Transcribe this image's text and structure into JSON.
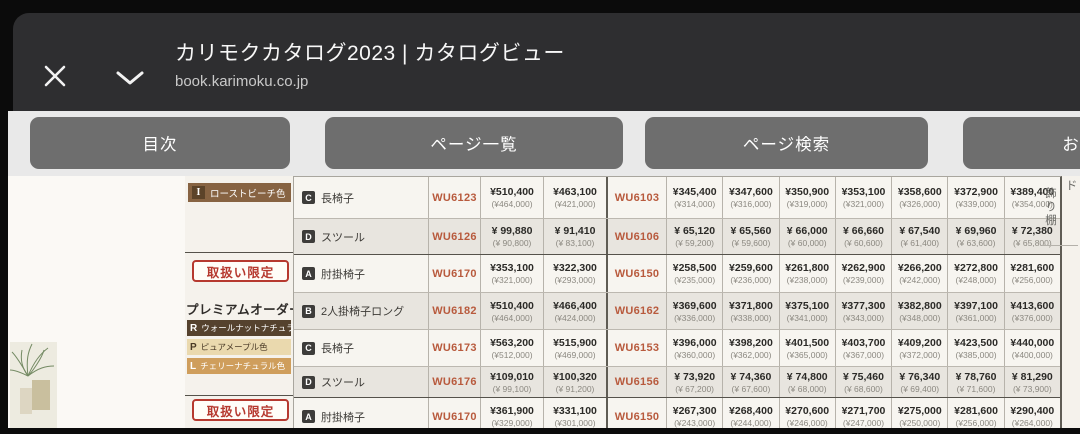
{
  "header": {
    "title": "カリモクカタログ2023 | カタログビュー",
    "url": "book.karimoku.co.jp"
  },
  "tabs": [
    {
      "label": "目次"
    },
    {
      "label": "ページ一覧"
    },
    {
      "label": "ページ検索"
    },
    {
      "label": "お"
    }
  ],
  "catalog": {
    "side_fragment": {
      "text_1": "ド",
      "text_2": "飾り棚"
    },
    "left_labels": {
      "color_badge_top": {
        "letter": "I",
        "label": "ローストビーチ色"
      },
      "limited_badge": "取扱い限定",
      "premium_title": "プレミアムオーダー",
      "premium_colors": [
        {
          "letter": "R",
          "label": "ウォールナットナチュラル色"
        },
        {
          "letter": "P",
          "label": "ピュアメープル色"
        },
        {
          "letter": "L",
          "label": "チェリーナチュラル色"
        }
      ],
      "limited_badge_2": "取扱い限定"
    },
    "rows": [
      {
        "icon": "C",
        "name": "長椅子",
        "code1": "WU6123",
        "group_start": false,
        "prices1": [
          [
            "¥510,400",
            "(¥464,000)"
          ],
          [
            "¥463,100",
            "(¥421,000)"
          ]
        ],
        "code2": "WU6103",
        "prices2": [
          [
            "¥345,400",
            "(¥314,000)"
          ],
          [
            "¥347,600",
            "(¥316,000)"
          ],
          [
            "¥350,900",
            "(¥319,000)"
          ],
          [
            "¥353,100",
            "(¥321,000)"
          ],
          [
            "¥358,600",
            "(¥326,000)"
          ],
          [
            "¥372,900",
            "(¥339,000)"
          ],
          [
            "¥389,400",
            "(¥354,000)"
          ]
        ]
      },
      {
        "icon": "D",
        "name": "スツール",
        "code1": "WU6126",
        "group_start": false,
        "prices1": [
          [
            "¥ 99,880",
            "(¥ 90,800)"
          ],
          [
            "¥ 91,410",
            "(¥ 83,100)"
          ]
        ],
        "code2": "WU6106",
        "prices2": [
          [
            "¥ 65,120",
            "(¥ 59,200)"
          ],
          [
            "¥ 65,560",
            "(¥ 59,600)"
          ],
          [
            "¥ 66,000",
            "(¥ 60,000)"
          ],
          [
            "¥ 66,660",
            "(¥ 60,600)"
          ],
          [
            "¥ 67,540",
            "(¥ 61,400)"
          ],
          [
            "¥ 69,960",
            "(¥ 63,600)"
          ],
          [
            "¥ 72,380",
            "(¥ 65,800)"
          ]
        ]
      },
      {
        "icon": "A",
        "name": "肘掛椅子",
        "code1": "WU6170",
        "group_start": true,
        "prices1": [
          [
            "¥353,100",
            "(¥321,000)"
          ],
          [
            "¥322,300",
            "(¥293,000)"
          ]
        ],
        "code2": "WU6150",
        "prices2": [
          [
            "¥258,500",
            "(¥235,000)"
          ],
          [
            "¥259,600",
            "(¥236,000)"
          ],
          [
            "¥261,800",
            "(¥238,000)"
          ],
          [
            "¥262,900",
            "(¥239,000)"
          ],
          [
            "¥266,200",
            "(¥242,000)"
          ],
          [
            "¥272,800",
            "(¥248,000)"
          ],
          [
            "¥281,600",
            "(¥256,000)"
          ]
        ]
      },
      {
        "icon": "B",
        "name": "2人掛椅子ロング",
        "code1": "WU6182",
        "group_start": false,
        "prices1": [
          [
            "¥510,400",
            "(¥464,000)"
          ],
          [
            "¥466,400",
            "(¥424,000)"
          ]
        ],
        "code2": "WU6162",
        "prices2": [
          [
            "¥369,600",
            "(¥336,000)"
          ],
          [
            "¥371,800",
            "(¥338,000)"
          ],
          [
            "¥375,100",
            "(¥341,000)"
          ],
          [
            "¥377,300",
            "(¥343,000)"
          ],
          [
            "¥382,800",
            "(¥348,000)"
          ],
          [
            "¥397,100",
            "(¥361,000)"
          ],
          [
            "¥413,600",
            "(¥376,000)"
          ]
        ]
      },
      {
        "icon": "C",
        "name": "長椅子",
        "code1": "WU6173",
        "group_start": false,
        "prices1": [
          [
            "¥563,200",
            "(¥512,000)"
          ],
          [
            "¥515,900",
            "(¥469,000)"
          ]
        ],
        "code2": "WU6153",
        "prices2": [
          [
            "¥396,000",
            "(¥360,000)"
          ],
          [
            "¥398,200",
            "(¥362,000)"
          ],
          [
            "¥401,500",
            "(¥365,000)"
          ],
          [
            "¥403,700",
            "(¥367,000)"
          ],
          [
            "¥409,200",
            "(¥372,000)"
          ],
          [
            "¥423,500",
            "(¥385,000)"
          ],
          [
            "¥440,000",
            "(¥400,000)"
          ]
        ]
      },
      {
        "icon": "D",
        "name": "スツール",
        "code1": "WU6176",
        "group_start": false,
        "prices1": [
          [
            "¥109,010",
            "(¥ 99,100)"
          ],
          [
            "¥100,320",
            "(¥ 91,200)"
          ]
        ],
        "code2": "WU6156",
        "prices2": [
          [
            "¥ 73,920",
            "(¥ 67,200)"
          ],
          [
            "¥ 74,360",
            "(¥ 67,600)"
          ],
          [
            "¥ 74,800",
            "(¥ 68,000)"
          ],
          [
            "¥ 75,460",
            "(¥ 68,600)"
          ],
          [
            "¥ 76,340",
            "(¥ 69,400)"
          ],
          [
            "¥ 78,760",
            "(¥ 71,600)"
          ],
          [
            "¥ 81,290",
            "(¥ 73,900)"
          ]
        ]
      },
      {
        "icon": "A",
        "name": "肘掛椅子",
        "code1": "WU6170",
        "group_start": true,
        "prices1": [
          [
            "¥361,900",
            "(¥329,000)"
          ],
          [
            "¥331,100",
            "(¥301,000)"
          ]
        ],
        "code2": "WU6150",
        "prices2": [
          [
            "¥267,300",
            "(¥243,000)"
          ],
          [
            "¥268,400",
            "(¥244,000)"
          ],
          [
            "¥270,600",
            "(¥246,000)"
          ],
          [
            "¥271,700",
            "(¥247,000)"
          ],
          [
            "¥275,000",
            "(¥250,000)"
          ],
          [
            "¥281,600",
            "(¥256,000)"
          ],
          [
            "¥290,400",
            "(¥264,000)"
          ]
        ]
      }
    ]
  },
  "colors": {
    "header_bg": "#2e2e30",
    "tab_button_bg": "#6e6e6e",
    "page_bg": "#f5f2ec",
    "row_alt_bg": "#e8e5df",
    "code_text": "#b85a3d",
    "limited_red": "#b6392f",
    "rost_beech_bg": "#876342",
    "walnut_bg": "#55422e",
    "maple_bg": "#ead9ae",
    "cherry_bg": "#cf9e5c"
  }
}
